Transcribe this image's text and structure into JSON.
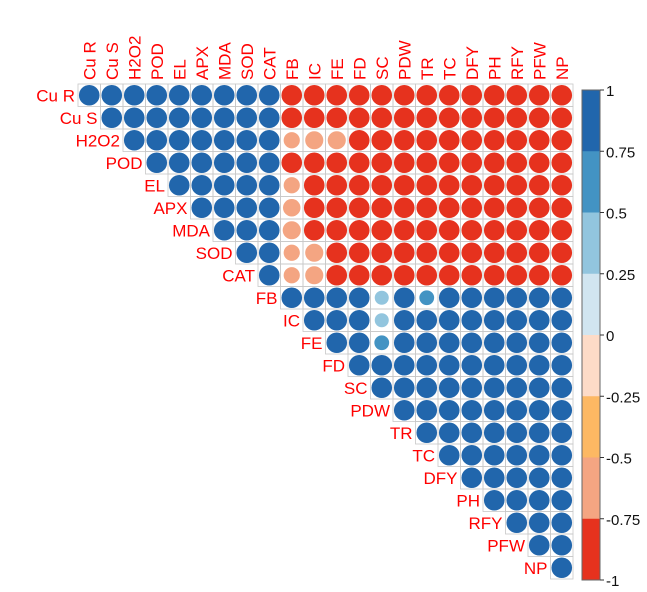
{
  "chart_data": {
    "type": "heatmap",
    "subtype": "correlation-matrix-upper-triangle-circles",
    "variables": [
      "Cu R",
      "Cu S",
      "H2O2",
      "POD",
      "EL",
      "APX",
      "MDA",
      "SOD",
      "CAT",
      "FB",
      "IC",
      "FE",
      "FD",
      "SC",
      "PDW",
      "TR",
      "TC",
      "DFY",
      "PH",
      "RFY",
      "PFW",
      "NP"
    ],
    "groups": {
      "stress_traits": [
        "Cu R",
        "Cu S",
        "H2O2",
        "POD",
        "EL",
        "APX",
        "MDA",
        "SOD",
        "CAT"
      ],
      "growth_yield_traits": [
        "FB",
        "IC",
        "FE",
        "FD",
        "SC",
        "PDW",
        "TR",
        "TC",
        "DFY",
        "PH",
        "RFY",
        "PFW",
        "NP"
      ]
    },
    "within_group_correlation": 0.97,
    "between_group_correlation": -0.97,
    "exceptions": [
      {
        "row": "H2O2",
        "col": "FB",
        "value": -0.6
      },
      {
        "row": "H2O2",
        "col": "IC",
        "value": -0.75
      },
      {
        "row": "H2O2",
        "col": "FE",
        "value": -0.75
      },
      {
        "row": "EL",
        "col": "FB",
        "value": -0.6
      },
      {
        "row": "APX",
        "col": "FB",
        "value": -0.7
      },
      {
        "row": "MDA",
        "col": "FB",
        "value": -0.75
      },
      {
        "row": "SOD",
        "col": "FB",
        "value": -0.6
      },
      {
        "row": "SOD",
        "col": "IC",
        "value": -0.75
      },
      {
        "row": "CAT",
        "col": "FB",
        "value": -0.6
      },
      {
        "row": "CAT",
        "col": "IC",
        "value": -0.75
      },
      {
        "row": "FB",
        "col": "SC",
        "value": 0.45
      },
      {
        "row": "FB",
        "col": "TR",
        "value": 0.5
      },
      {
        "row": "IC",
        "col": "SC",
        "value": 0.45
      },
      {
        "row": "FE",
        "col": "SC",
        "value": 0.5
      }
    ],
    "color_scale": {
      "min": -1,
      "max": 1,
      "tick_labels": [
        "1",
        "0.75",
        "0.5",
        "0.25",
        "0",
        "-0.25",
        "-0.5",
        "-0.75",
        "-1"
      ],
      "bins": [
        {
          "from": 0.75,
          "to": 1.0,
          "color": "#2166ac"
        },
        {
          "from": 0.5,
          "to": 0.75,
          "color": "#4393c3"
        },
        {
          "from": 0.25,
          "to": 0.5,
          "color": "#92c5de"
        },
        {
          "from": 0.0,
          "to": 0.25,
          "color": "#d1e5f0"
        },
        {
          "from": -0.25,
          "to": 0.0,
          "color": "#fddbc7"
        },
        {
          "from": -0.5,
          "to": -0.25,
          "color": "#fdb863"
        },
        {
          "from": -0.75,
          "to": -0.5,
          "color": "#f4a582"
        },
        {
          "from": -1.0,
          "to": -0.75,
          "color": "#e6321e"
        }
      ]
    },
    "legend_position": "right",
    "label_color": "#ff0000",
    "grid": true
  }
}
